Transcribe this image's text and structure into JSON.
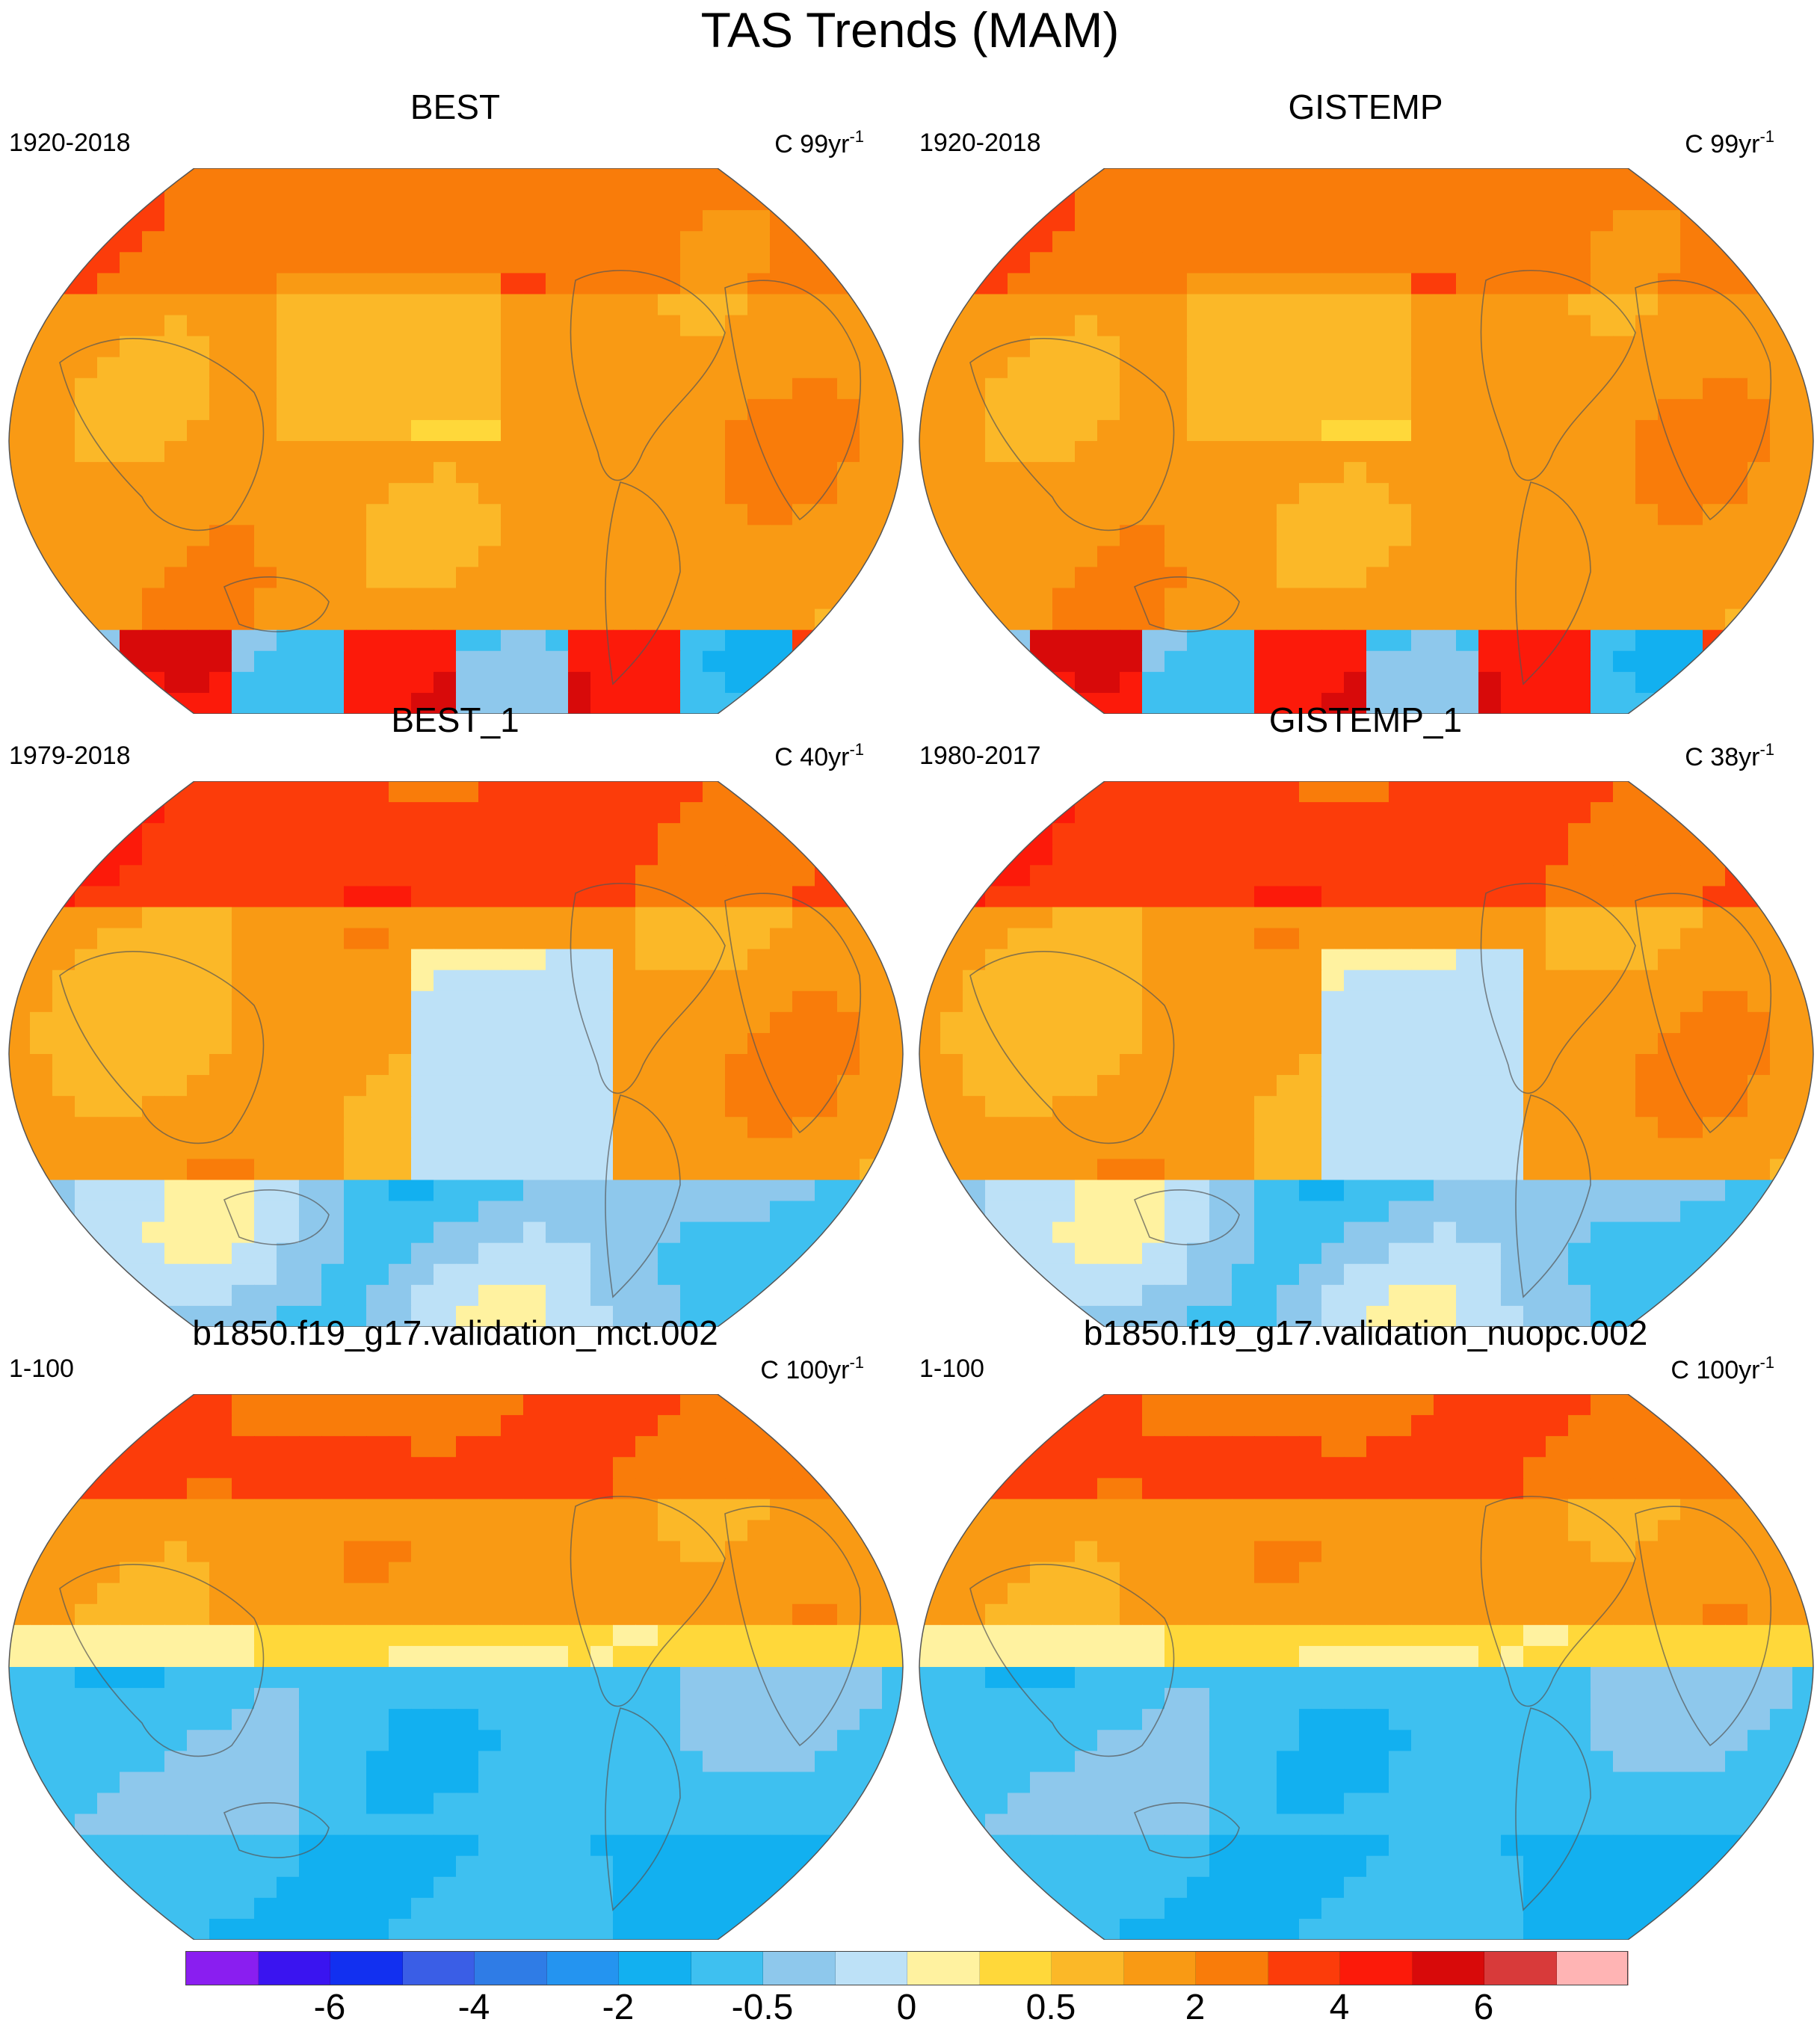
{
  "title": "TAS Trends (MAM)",
  "panels": [
    {
      "title": "BEST",
      "period": "1920-2018",
      "units": "C 99yr",
      "units_exp": "-1",
      "pattern": "hist_best"
    },
    {
      "title": "GISTEMP",
      "period": "1920-2018",
      "units": "C 99yr",
      "units_exp": "-1",
      "pattern": "hist_gis"
    },
    {
      "title": "BEST_1",
      "period": "1979-2018",
      "units": "C 40yr",
      "units_exp": "-1",
      "pattern": "recent_best"
    },
    {
      "title": "GISTEMP_1",
      "period": "1980-2017",
      "units": "C 38yr",
      "units_exp": "-1",
      "pattern": "recent_gis"
    },
    {
      "title": "b1850.f19_g17.validation_mct.002",
      "period": "1-100",
      "units": "C 100yr",
      "units_exp": "-1",
      "pattern": "model"
    },
    {
      "title": "b1850.f19_g17.validation_nuopc.002",
      "period": "1-100",
      "units": "C 100yr",
      "units_exp": "-1",
      "pattern": "model2"
    }
  ],
  "colorbar": {
    "colors": [
      "#8a1ef0",
      "#3a14f0",
      "#1230f0",
      "#3a5ee6",
      "#2f7ce6",
      "#2494f0",
      "#12b0f0",
      "#3ec0f0",
      "#8ec8ec",
      "#bde1f7",
      "#fff2a0",
      "#ffd83a",
      "#fbb828",
      "#f99a14",
      "#f97c0a",
      "#fc3c0a",
      "#fc1a0a",
      "#d80a0a",
      "#d83a3a",
      "#ffb4b4"
    ],
    "labels": [
      {
        "text": "-6",
        "boundary": 2
      },
      {
        "text": "-4",
        "boundary": 4
      },
      {
        "text": "-2",
        "boundary": 6
      },
      {
        "text": "-0.5",
        "boundary": 8
      },
      {
        "text": "0",
        "boundary": 10
      },
      {
        "text": "0.5",
        "boundary": 12
      },
      {
        "text": "2",
        "boundary": 14
      },
      {
        "text": "4",
        "boundary": 16
      },
      {
        "text": "6",
        "boundary": 18
      }
    ]
  }
}
